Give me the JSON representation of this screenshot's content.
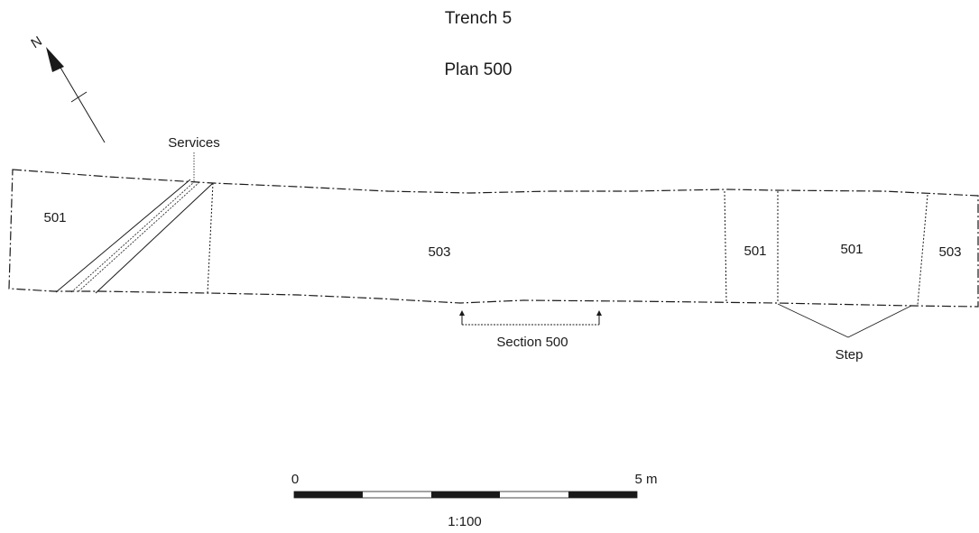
{
  "titles": {
    "trench": "Trench 5",
    "plan": "Plan 500"
  },
  "north_arrow": {
    "label": "N"
  },
  "labels": {
    "services": "Services",
    "section": "Section 500",
    "step": "Step"
  },
  "contexts": [
    "501",
    "503",
    "501",
    "501",
    "503"
  ],
  "scale_bar": {
    "start_label": "0",
    "end_label": "5 m",
    "ratio": "1:100"
  },
  "colors": {
    "ink": "#1a1a1a",
    "background": "#ffffff"
  }
}
